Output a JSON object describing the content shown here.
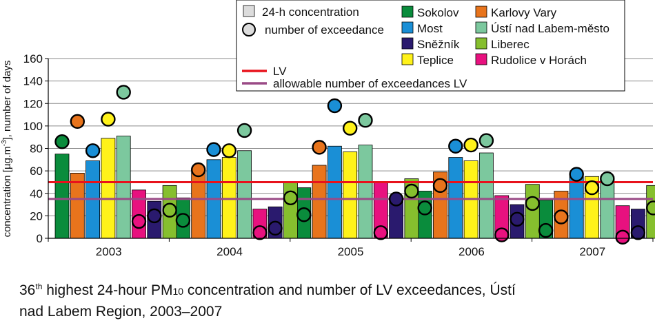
{
  "chart_data": {
    "type": "bar",
    "categories": [
      "2003",
      "2004",
      "2005",
      "2006",
      "2007"
    ],
    "ylabel_parts": [
      "concentration [µg.m",
      "-3",
      "], number of days"
    ],
    "ylim": [
      0,
      160
    ],
    "yticks": [
      "0",
      "20",
      "40",
      "60",
      "80",
      "100",
      "120",
      "140",
      "160"
    ],
    "grid": true,
    "series": [
      {
        "name": "Sokolov",
        "color": "#0a8c3c",
        "values": [
          75,
          36,
          45,
          42,
          34
        ],
        "exceedances": [
          86,
          16,
          21,
          27,
          7
        ]
      },
      {
        "name": "Karlovy Vary",
        "color": "#e8741c",
        "values": [
          58,
          60,
          65,
          59,
          42
        ],
        "exceedances": [
          104,
          61,
          81,
          47,
          19
        ]
      },
      {
        "name": "Most",
        "color": "#1a8fd6",
        "values": [
          69,
          70,
          82,
          72,
          55
        ],
        "exceedances": [
          78,
          79,
          118,
          82,
          57
        ]
      },
      {
        "name": "Teplice",
        "color": "#fff21a",
        "values": [
          89,
          72,
          77,
          69,
          55
        ],
        "exceedances": [
          106,
          78,
          98,
          83,
          45
        ]
      },
      {
        "name": "Ústí nad Labem-město",
        "color": "#7cc89e",
        "values": [
          91,
          78,
          83,
          76,
          55
        ],
        "exceedances": [
          130,
          96,
          105,
          87,
          53
        ]
      },
      {
        "name": "Rudolice v Horách",
        "color": "#e8117f",
        "values": [
          43,
          26,
          50,
          38,
          29
        ],
        "exceedances": [
          15,
          5,
          5,
          3,
          1
        ]
      },
      {
        "name": "Sněžník",
        "color": "#2a1a6e",
        "values": [
          33,
          28,
          35,
          30,
          26
        ],
        "exceedances": [
          20,
          9,
          35,
          17,
          5
        ]
      },
      {
        "name": "Liberec",
        "color": "#86bf2e",
        "values": [
          47,
          50,
          53,
          48,
          47
        ],
        "exceedances": [
          25,
          36,
          42,
          31,
          27
        ]
      }
    ],
    "reference_lines": [
      {
        "name": "LV",
        "value": 50,
        "color": "#e8121c"
      },
      {
        "name": "allowable number of exceedances LV",
        "value": 35,
        "color": "#9a4a86"
      }
    ],
    "legend": {
      "bar_sym": "24-h concentration",
      "circle_sym": "number of exceedance",
      "order": [
        0,
        2,
        6,
        3,
        1,
        4,
        7,
        5
      ]
    }
  },
  "caption": {
    "p1": "36",
    "sup": "th",
    "p2": " highest 24-hour PM",
    "sub": "10",
    "p3": " concentration and number of LV exceedances, Ústí",
    "line2": "nad Labem Region, 2003–2007"
  }
}
